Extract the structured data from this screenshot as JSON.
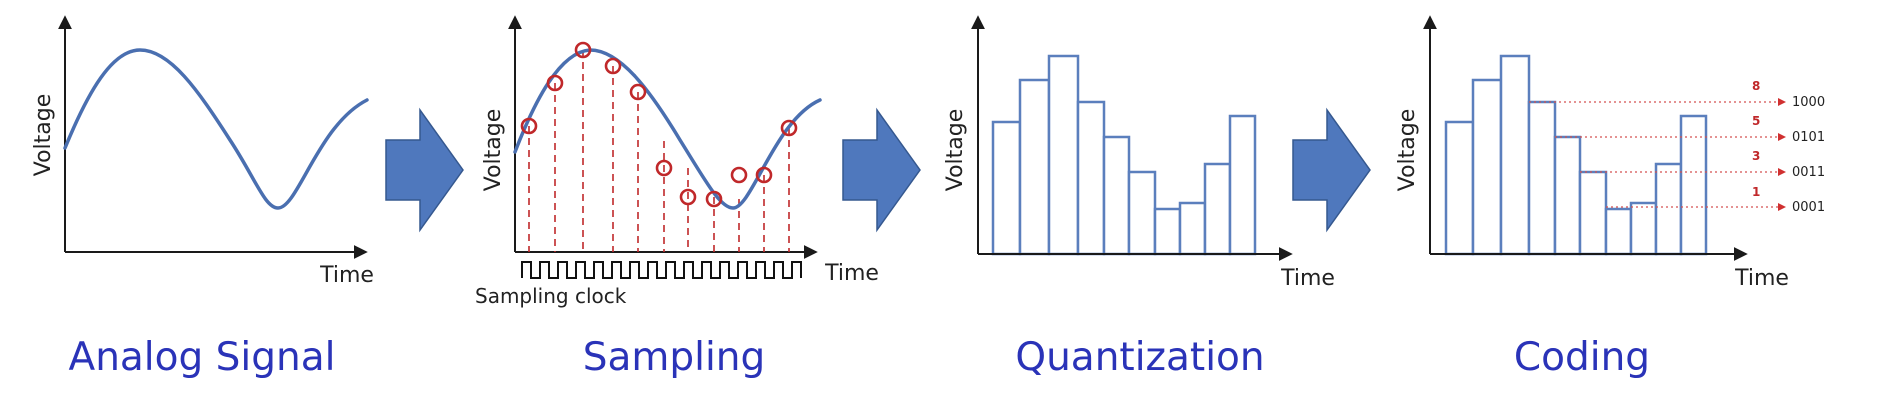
{
  "panels": [
    {
      "id": "analog",
      "title": "Analog Signal",
      "ylabel": "Voltage",
      "xlabel": "Time"
    },
    {
      "id": "sampling",
      "title": "Sampling",
      "ylabel": "Voltage",
      "xlabel": "Time",
      "clock_label": "Sampling clock"
    },
    {
      "id": "quantization",
      "title": "Quantization",
      "ylabel": "Voltage",
      "xlabel": "Time"
    },
    {
      "id": "coding",
      "title": "Coding",
      "ylabel": "Voltage",
      "xlabel": "Time"
    }
  ],
  "coding_levels": [
    {
      "level": "8",
      "code": "1000"
    },
    {
      "level": "5",
      "code": "0101"
    },
    {
      "level": "3",
      "code": "0011"
    },
    {
      "level": "1",
      "code": "0001"
    }
  ],
  "colors": {
    "title": "#2a33b8",
    "wave": "#4a6fb0",
    "samples": "#c0282a",
    "arrow": "#4f78bd"
  }
}
